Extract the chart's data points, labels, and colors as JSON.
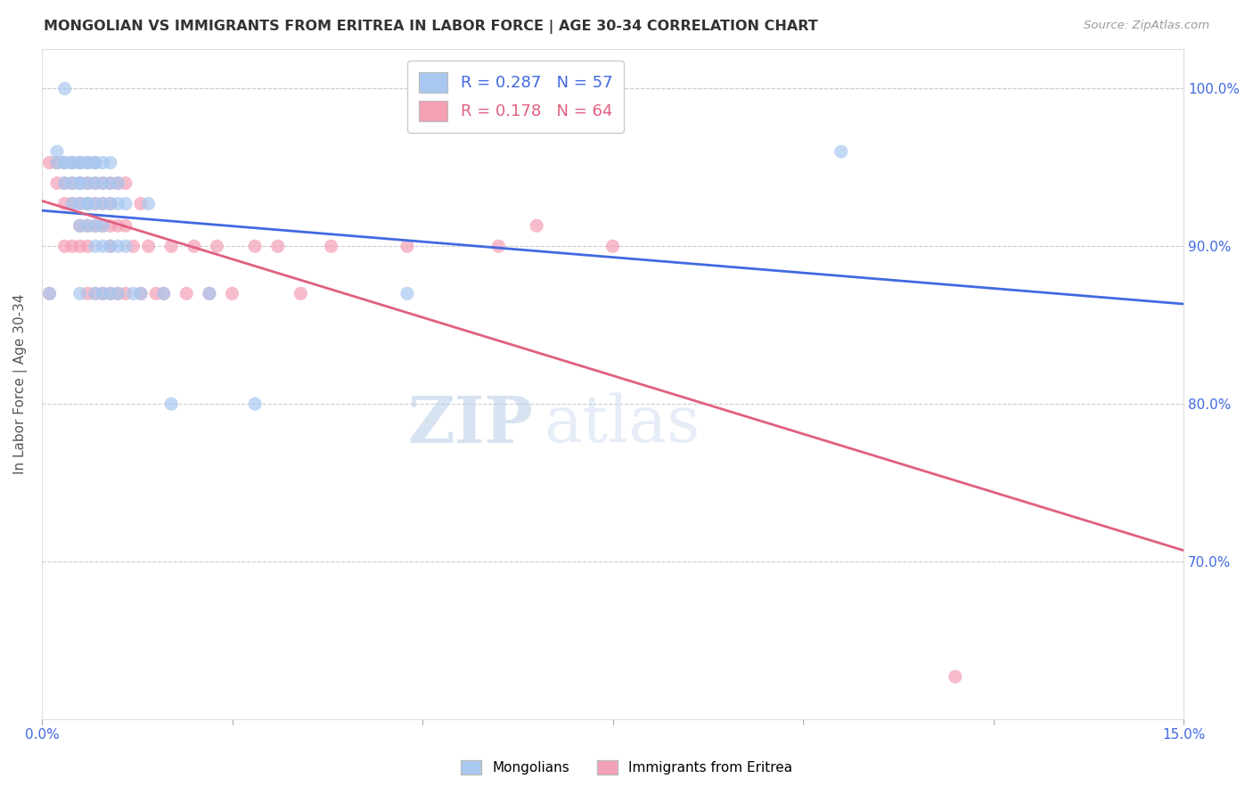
{
  "title": "MONGOLIAN VS IMMIGRANTS FROM ERITREA IN LABOR FORCE | AGE 30-34 CORRELATION CHART",
  "source": "Source: ZipAtlas.com",
  "ylabel": "In Labor Force | Age 30-34",
  "xmin": 0.0,
  "xmax": 0.15,
  "ymin": 0.6,
  "ymax": 1.025,
  "yticks": [
    0.7,
    0.8,
    0.9,
    1.0
  ],
  "ytick_labels": [
    "70.0%",
    "80.0%",
    "90.0%",
    "100.0%"
  ],
  "xticks": [
    0.0,
    0.025,
    0.05,
    0.075,
    0.1,
    0.125,
    0.15
  ],
  "xtick_labels": [
    "0.0%",
    "",
    "",
    "",
    "",
    "",
    "15.0%"
  ],
  "legend_r_blue": "0.287",
  "legend_n_blue": "57",
  "legend_r_pink": "0.178",
  "legend_n_pink": "64",
  "blue_color": "#A8C8F0",
  "pink_color": "#F4A0B5",
  "trendline_blue": "#4169E1",
  "trendline_pink": "#E06080",
  "mongolians_x": [
    0.001,
    0.002,
    0.002,
    0.003,
    0.003,
    0.003,
    0.003,
    0.004,
    0.004,
    0.004,
    0.004,
    0.005,
    0.005,
    0.005,
    0.005,
    0.005,
    0.005,
    0.005,
    0.006,
    0.006,
    0.006,
    0.006,
    0.006,
    0.006,
    0.007,
    0.007,
    0.007,
    0.007,
    0.007,
    0.007,
    0.007,
    0.008,
    0.008,
    0.008,
    0.008,
    0.008,
    0.008,
    0.009,
    0.009,
    0.009,
    0.009,
    0.009,
    0.01,
    0.01,
    0.01,
    0.01,
    0.011,
    0.011,
    0.012,
    0.013,
    0.014,
    0.016,
    0.017,
    0.022,
    0.028,
    0.048,
    0.105
  ],
  "mongolians_y": [
    0.87,
    0.96,
    0.953,
    0.953,
    0.94,
    0.953,
    1.0,
    0.953,
    0.953,
    0.94,
    0.927,
    0.953,
    0.953,
    0.94,
    0.94,
    0.927,
    0.913,
    0.87,
    0.953,
    0.953,
    0.94,
    0.927,
    0.927,
    0.913,
    0.953,
    0.953,
    0.94,
    0.927,
    0.913,
    0.9,
    0.87,
    0.953,
    0.94,
    0.927,
    0.913,
    0.9,
    0.87,
    0.953,
    0.94,
    0.927,
    0.9,
    0.87,
    0.94,
    0.927,
    0.9,
    0.87,
    0.927,
    0.9,
    0.87,
    0.87,
    0.927,
    0.87,
    0.8,
    0.87,
    0.8,
    0.87,
    0.96
  ],
  "eritrea_x": [
    0.001,
    0.001,
    0.002,
    0.002,
    0.003,
    0.003,
    0.003,
    0.003,
    0.004,
    0.004,
    0.004,
    0.004,
    0.005,
    0.005,
    0.005,
    0.005,
    0.005,
    0.006,
    0.006,
    0.006,
    0.006,
    0.006,
    0.006,
    0.007,
    0.007,
    0.007,
    0.007,
    0.007,
    0.008,
    0.008,
    0.008,
    0.008,
    0.009,
    0.009,
    0.009,
    0.009,
    0.009,
    0.01,
    0.01,
    0.01,
    0.011,
    0.011,
    0.011,
    0.012,
    0.013,
    0.013,
    0.014,
    0.015,
    0.016,
    0.017,
    0.019,
    0.02,
    0.022,
    0.023,
    0.025,
    0.028,
    0.031,
    0.034,
    0.038,
    0.048,
    0.06,
    0.065,
    0.075,
    0.12
  ],
  "eritrea_y": [
    0.87,
    0.953,
    0.953,
    0.94,
    0.953,
    0.94,
    0.927,
    0.9,
    0.953,
    0.94,
    0.927,
    0.9,
    0.953,
    0.94,
    0.927,
    0.913,
    0.9,
    0.953,
    0.94,
    0.927,
    0.913,
    0.9,
    0.87,
    0.953,
    0.94,
    0.927,
    0.913,
    0.87,
    0.94,
    0.927,
    0.913,
    0.87,
    0.94,
    0.927,
    0.913,
    0.9,
    0.87,
    0.94,
    0.913,
    0.87,
    0.94,
    0.913,
    0.87,
    0.9,
    0.927,
    0.87,
    0.9,
    0.87,
    0.87,
    0.9,
    0.87,
    0.9,
    0.87,
    0.9,
    0.87,
    0.9,
    0.9,
    0.87,
    0.9,
    0.9,
    0.9,
    0.913,
    0.9,
    0.627
  ],
  "watermark_zip": "ZIP",
  "watermark_atlas": "atlas",
  "background_color": "#FFFFFF",
  "grid_color": "#CCCCCC"
}
